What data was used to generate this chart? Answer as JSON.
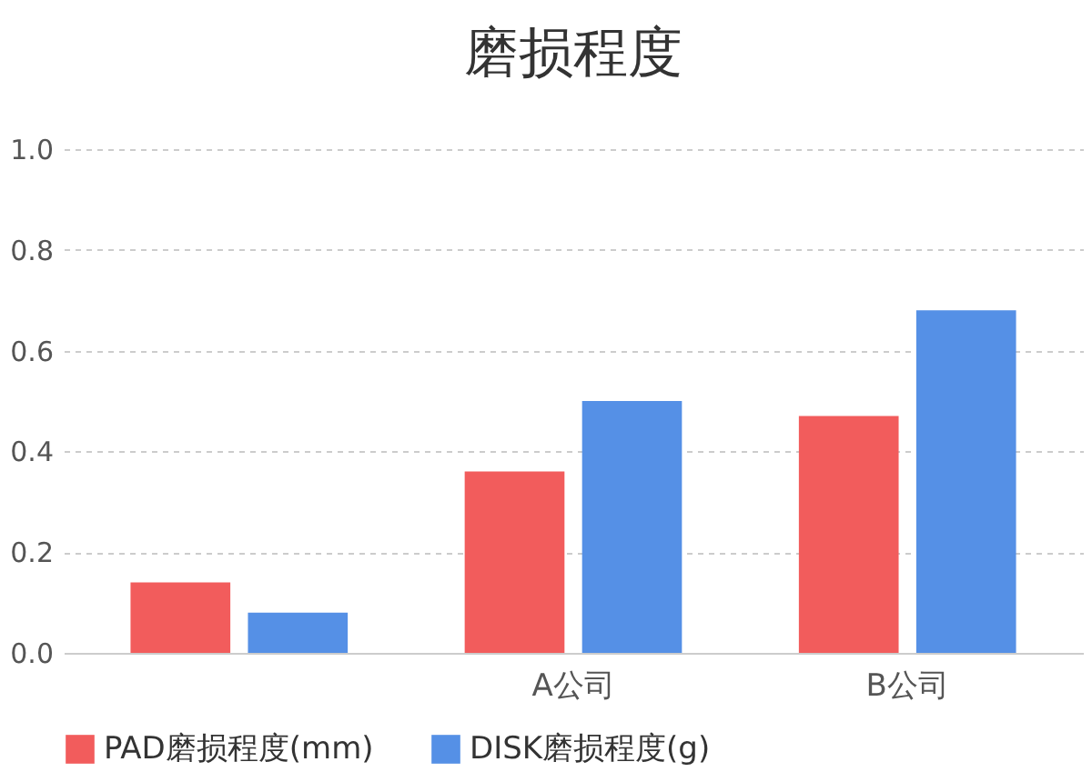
{
  "chart_data": {
    "type": "bar",
    "title": "磨损程度",
    "categories": [
      null,
      "A公司",
      "B公司"
    ],
    "series": [
      {
        "name": "PAD磨损程度(mm)",
        "color": "#f25c5c",
        "values": [
          0.14,
          0.36,
          0.47
        ]
      },
      {
        "name": "DISK磨损程度(g)",
        "color": "#5590e6",
        "values": [
          0.08,
          0.5,
          0.68
        ]
      }
    ],
    "ylim": [
      0,
      1.0
    ],
    "yticks": [
      {
        "value": 0,
        "label": "0.0"
      },
      {
        "value": 0.2,
        "label": "0.2"
      },
      {
        "value": 0.4,
        "label": "0.4"
      },
      {
        "value": 0.6,
        "label": "0.6"
      },
      {
        "value": 0.8,
        "label": "0.8"
      },
      {
        "value": 1.0,
        "label": "1.0"
      }
    ],
    "grid": "y",
    "legend": "bottom"
  }
}
